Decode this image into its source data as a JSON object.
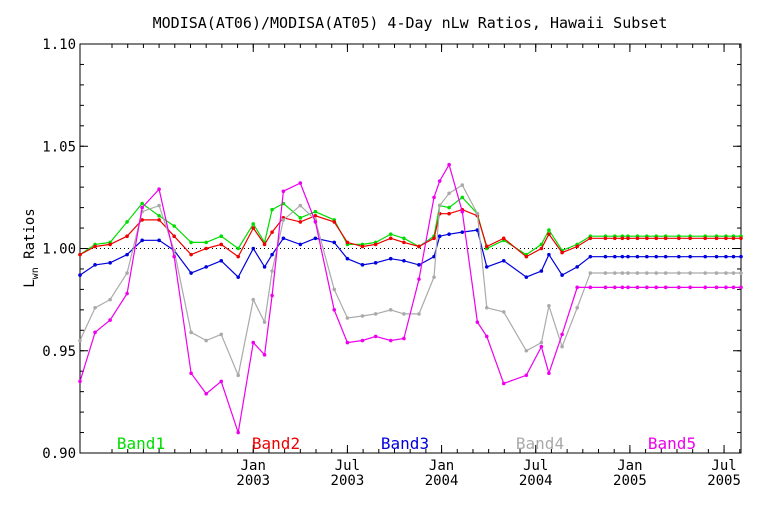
{
  "chart_data": {
    "type": "line",
    "title": "MODISA(AT06)/MODISA(AT05) 4-Day nLw Ratios, Hawaii Subset",
    "ylabel": "L_wn Ratios",
    "ylim": [
      0.9,
      1.1
    ],
    "yticks": [
      "0.90",
      "0.95",
      "1.00",
      "1.05",
      "1.10"
    ],
    "xlim": [
      2002.08,
      2005.59
    ],
    "xticks": [
      {
        "month": "Jan",
        "year": "2003",
        "x": 2003.0
      },
      {
        "month": "Jul",
        "year": "2003",
        "x": 2003.5
      },
      {
        "month": "Jan",
        "year": "2004",
        "x": 2004.0
      },
      {
        "month": "Jul",
        "year": "2004",
        "x": 2004.5
      },
      {
        "month": "Jan",
        "year": "2005",
        "x": 2005.0
      },
      {
        "month": "Jul",
        "year": "2005",
        "x": 2005.5
      }
    ],
    "reference_line": 1.0,
    "x": [
      2002.08,
      2002.16,
      2002.24,
      2002.33,
      2002.41,
      2002.5,
      2002.58,
      2002.67,
      2002.75,
      2002.83,
      2002.92,
      2003.0,
      2003.06,
      2003.1,
      2003.16,
      2003.25,
      2003.33,
      2003.43,
      2003.5,
      2003.58,
      2003.65,
      2003.73,
      2003.8,
      2003.88,
      2003.96,
      2003.99,
      2004.04,
      2004.11,
      2004.19,
      2004.24,
      2004.33,
      2004.45,
      2004.53,
      2004.57,
      2004.64,
      2004.72,
      2004.79,
      2004.87,
      2004.92,
      2004.96,
      2004.99,
      2005.04,
      2005.09,
      2005.14,
      2005.19,
      2005.26,
      2005.32,
      2005.4,
      2005.46,
      2005.51,
      2005.55,
      2005.59
    ],
    "series": [
      {
        "name": "Band1",
        "color": "#00dd00",
        "values": [
          0.997,
          1.002,
          1.003,
          1.013,
          1.022,
          1.016,
          1.011,
          1.003,
          1.003,
          1.006,
          1.0,
          1.012,
          1.003,
          1.019,
          1.022,
          1.015,
          1.018,
          1.014,
          1.002,
          1.002,
          1.003,
          1.007,
          1.005,
          1.001,
          1.006,
          1.021,
          1.02,
          1.025,
          1.017,
          1.0,
          1.004,
          0.997,
          1.002,
          1.009,
          0.999,
          1.002,
          1.006,
          1.006,
          1.006,
          1.006,
          1.006,
          1.006,
          1.006,
          1.006,
          1.006,
          1.006,
          1.006,
          1.006,
          1.006,
          1.006,
          1.006,
          1.006
        ]
      },
      {
        "name": "Band2",
        "color": "#ee0000",
        "values": [
          0.997,
          1.001,
          1.002,
          1.006,
          1.014,
          1.014,
          1.006,
          0.997,
          1.0,
          1.002,
          0.996,
          1.01,
          1.002,
          1.008,
          1.015,
          1.013,
          1.016,
          1.013,
          1.003,
          1.001,
          1.002,
          1.005,
          1.003,
          1.001,
          1.005,
          1.017,
          1.017,
          1.019,
          1.016,
          1.001,
          1.005,
          0.996,
          1.0,
          1.007,
          0.998,
          1.001,
          1.005,
          1.005,
          1.005,
          1.005,
          1.005,
          1.005,
          1.005,
          1.005,
          1.005,
          1.005,
          1.005,
          1.005,
          1.005,
          1.005,
          1.005,
          1.005
        ]
      },
      {
        "name": "Band3",
        "color": "#0000dd",
        "values": [
          0.987,
          0.992,
          0.993,
          0.997,
          1.004,
          1.004,
          0.999,
          0.988,
          0.991,
          0.994,
          0.986,
          1.0,
          0.991,
          0.997,
          1.005,
          1.002,
          1.005,
          1.003,
          0.995,
          0.992,
          0.993,
          0.995,
          0.994,
          0.992,
          0.996,
          1.006,
          1.007,
          1.008,
          1.009,
          0.991,
          0.994,
          0.986,
          0.989,
          0.997,
          0.987,
          0.991,
          0.996,
          0.996,
          0.996,
          0.996,
          0.996,
          0.996,
          0.996,
          0.996,
          0.996,
          0.996,
          0.996,
          0.996,
          0.996,
          0.996,
          0.996,
          0.996
        ]
      },
      {
        "name": "Band4",
        "color": "#aaaaaa",
        "values": [
          0.955,
          0.971,
          0.975,
          0.988,
          1.018,
          1.021,
          0.999,
          0.959,
          0.955,
          0.958,
          0.938,
          0.975,
          0.964,
          0.989,
          1.014,
          1.021,
          1.014,
          0.98,
          0.966,
          0.967,
          0.968,
          0.97,
          0.968,
          0.968,
          0.986,
          1.021,
          1.027,
          1.031,
          1.017,
          0.971,
          0.969,
          0.95,
          0.954,
          0.972,
          0.952,
          0.971,
          0.988,
          0.988,
          0.988,
          0.988,
          0.988,
          0.988,
          0.988,
          0.988,
          0.988,
          0.988,
          0.988,
          0.988,
          0.988,
          0.988,
          0.988,
          0.988
        ]
      },
      {
        "name": "Band5",
        "color": "#ee00ee",
        "values": [
          0.935,
          0.959,
          0.965,
          0.978,
          1.02,
          1.029,
          0.996,
          0.939,
          0.929,
          0.935,
          0.91,
          0.954,
          0.948,
          0.977,
          1.028,
          1.032,
          1.013,
          0.97,
          0.954,
          0.955,
          0.957,
          0.955,
          0.956,
          0.985,
          1.025,
          1.033,
          1.041,
          1.018,
          0.964,
          0.957,
          0.934,
          0.938,
          0.952,
          0.939,
          0.958,
          0.981,
          0.981,
          0.981,
          0.981,
          0.981,
          0.981,
          0.981,
          0.981,
          0.981,
          0.981,
          0.981,
          0.981,
          0.981,
          0.981,
          0.981,
          0.981,
          0.981
        ]
      }
    ],
    "legend": [
      {
        "label": "Band1",
        "color": "#00dd00"
      },
      {
        "label": "Band2",
        "color": "#ee0000"
      },
      {
        "label": "Band3",
        "color": "#0000dd"
      },
      {
        "label": "Band4",
        "color": "#aaaaaa"
      },
      {
        "label": "Band5",
        "color": "#ee00ee"
      }
    ],
    "grid": false,
    "legend_position": "bottom-inside"
  }
}
